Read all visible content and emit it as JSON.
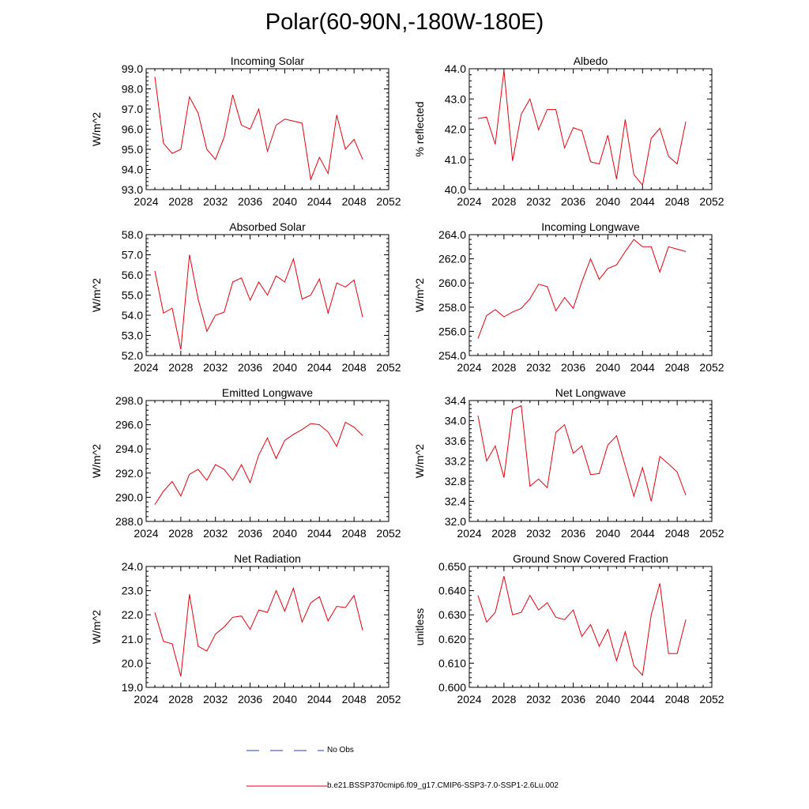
{
  "figure": {
    "title": "Polar(60-90N,-180W-180E)",
    "line_color": "#e8000b",
    "legend": [
      {
        "label": "No Obs",
        "style": "dashed",
        "color": "#2a3bbf"
      },
      {
        "label": "b.e21.BSSP370cmip6.f09_g17.CMIP6-SSP3-7.0-SSP1-2.6Lu.002",
        "style": "solid",
        "color": "#e8000b"
      }
    ]
  },
  "chart_data": [
    {
      "type": "line",
      "title": "Incoming Solar",
      "xlabel": "",
      "ylabel": "W/m^2",
      "xlim": [
        2024,
        2052
      ],
      "ylim": [
        93.0,
        99.0
      ],
      "xticks": [
        "2024",
        "2028",
        "2032",
        "2036",
        "2040",
        "2044",
        "2048",
        "2052"
      ],
      "yticks": [
        "93.0",
        "94.0",
        "95.0",
        "96.0",
        "97.0",
        "98.0",
        "99.0"
      ],
      "x": [
        2025,
        2026,
        2027,
        2028,
        2029,
        2030,
        2031,
        2032,
        2033,
        2034,
        2035,
        2036,
        2037,
        2038,
        2039,
        2040,
        2041,
        2042,
        2043,
        2044,
        2045,
        2046,
        2047,
        2048,
        2049
      ],
      "y": [
        98.6,
        95.3,
        94.8,
        95.0,
        97.6,
        96.8,
        95.0,
        94.5,
        95.6,
        97.7,
        96.2,
        96.0,
        97.0,
        94.9,
        96.2,
        96.5,
        96.4,
        96.3,
        93.5,
        94.6,
        93.8,
        96.7,
        95.0,
        95.5,
        94.5
      ]
    },
    {
      "type": "line",
      "title": "Albedo",
      "xlabel": "",
      "ylabel": "% reflected",
      "xlim": [
        2024,
        2052
      ],
      "ylim": [
        40.0,
        44.0
      ],
      "xticks": [
        "2024",
        "2028",
        "2032",
        "2036",
        "2040",
        "2044",
        "2048",
        "2052"
      ],
      "yticks": [
        "40.0",
        "41.0",
        "42.0",
        "43.0",
        "44.0"
      ],
      "x": [
        2025,
        2026,
        2027,
        2028,
        2029,
        2030,
        2031,
        2032,
        2033,
        2034,
        2035,
        2036,
        2037,
        2038,
        2039,
        2040,
        2041,
        2042,
        2043,
        2044,
        2045,
        2046,
        2047,
        2048,
        2049
      ],
      "y": [
        42.35,
        42.4,
        41.5,
        43.95,
        40.95,
        42.5,
        43.0,
        41.98,
        42.65,
        42.65,
        41.38,
        42.05,
        41.95,
        40.92,
        40.85,
        41.8,
        40.35,
        42.32,
        40.5,
        40.15,
        41.7,
        42.03,
        41.1,
        40.85,
        42.25
      ]
    },
    {
      "type": "line",
      "title": "Absorbed Solar",
      "xlabel": "",
      "ylabel": "W/m^2",
      "xlim": [
        2024,
        2052
      ],
      "ylim": [
        52.0,
        58.0
      ],
      "xticks": [
        "2024",
        "2028",
        "2032",
        "2036",
        "2040",
        "2044",
        "2048",
        "2052"
      ],
      "yticks": [
        "52.0",
        "53.0",
        "54.0",
        "55.0",
        "56.0",
        "57.0",
        "58.0"
      ],
      "x": [
        2025,
        2026,
        2027,
        2028,
        2029,
        2030,
        2031,
        2032,
        2033,
        2034,
        2035,
        2036,
        2037,
        2038,
        2039,
        2040,
        2041,
        2042,
        2043,
        2044,
        2045,
        2046,
        2047,
        2048,
        2049
      ],
      "y": [
        56.2,
        54.1,
        54.35,
        52.3,
        57.0,
        54.8,
        53.2,
        54.0,
        54.15,
        55.65,
        55.85,
        54.75,
        55.65,
        55.0,
        55.95,
        55.65,
        56.8,
        54.8,
        55.0,
        55.8,
        54.1,
        55.6,
        55.4,
        55.75,
        53.9
      ]
    },
    {
      "type": "line",
      "title": "Incoming Longwave",
      "xlabel": "",
      "ylabel": "W/m^2",
      "xlim": [
        2024,
        2052
      ],
      "ylim": [
        254.0,
        264.0
      ],
      "xticks": [
        "2024",
        "2028",
        "2032",
        "2036",
        "2040",
        "2044",
        "2048",
        "2052"
      ],
      "yticks": [
        "254.0",
        "256.0",
        "258.0",
        "260.0",
        "262.0",
        "264.0"
      ],
      "x": [
        2025,
        2026,
        2027,
        2028,
        2029,
        2030,
        2031,
        2032,
        2033,
        2034,
        2035,
        2036,
        2037,
        2038,
        2039,
        2040,
        2041,
        2042,
        2043,
        2044,
        2045,
        2046,
        2047,
        2048,
        2049
      ],
      "y": [
        255.4,
        257.3,
        257.8,
        257.2,
        257.6,
        257.9,
        258.7,
        259.9,
        259.7,
        257.7,
        258.8,
        257.9,
        260.1,
        262.0,
        260.3,
        261.2,
        261.5,
        262.6,
        263.6,
        263.0,
        263.0,
        260.9,
        263.0,
        262.8,
        262.6
      ]
    },
    {
      "type": "line",
      "title": "Emitted Longwave",
      "xlabel": "",
      "ylabel": "W/m^2",
      "xlim": [
        2024,
        2052
      ],
      "ylim": [
        288.0,
        298.0
      ],
      "xticks": [
        "2024",
        "2028",
        "2032",
        "2036",
        "2040",
        "2044",
        "2048",
        "2052"
      ],
      "yticks": [
        "288.0",
        "290.0",
        "292.0",
        "294.0",
        "296.0",
        "298.0"
      ],
      "x": [
        2025,
        2026,
        2027,
        2028,
        2029,
        2030,
        2031,
        2032,
        2033,
        2034,
        2035,
        2036,
        2037,
        2038,
        2039,
        2040,
        2041,
        2042,
        2043,
        2044,
        2045,
        2046,
        2047,
        2048,
        2049
      ],
      "y": [
        289.4,
        290.5,
        291.3,
        290.1,
        291.9,
        292.3,
        291.4,
        292.7,
        292.3,
        291.4,
        292.7,
        291.2,
        293.5,
        294.9,
        293.2,
        294.7,
        295.2,
        295.6,
        296.1,
        296.0,
        295.4,
        294.2,
        296.2,
        295.8,
        295.1
      ]
    },
    {
      "type": "line",
      "title": "Net Longwave",
      "xlabel": "",
      "ylabel": "W/m^2",
      "xlim": [
        2024,
        2052
      ],
      "ylim": [
        32.0,
        34.4
      ],
      "xticks": [
        "2024",
        "2028",
        "2032",
        "2036",
        "2040",
        "2044",
        "2048",
        "2052"
      ],
      "yticks": [
        "32.0",
        "32.4",
        "32.8",
        "33.2",
        "33.6",
        "34.0",
        "34.4"
      ],
      "x": [
        2025,
        2026,
        2027,
        2028,
        2029,
        2030,
        2031,
        2032,
        2033,
        2034,
        2035,
        2036,
        2037,
        2038,
        2039,
        2040,
        2041,
        2042,
        2043,
        2044,
        2045,
        2046,
        2047,
        2048,
        2049
      ],
      "y": [
        34.1,
        33.2,
        33.5,
        32.87,
        34.22,
        34.3,
        32.7,
        32.84,
        32.67,
        33.77,
        33.92,
        33.35,
        33.5,
        32.93,
        32.95,
        33.52,
        33.7,
        33.1,
        32.5,
        33.07,
        32.4,
        33.29,
        33.14,
        32.98,
        32.52
      ]
    },
    {
      "type": "line",
      "title": "Net Radiation",
      "xlabel": "",
      "ylabel": "W/m^2",
      "xlim": [
        2024,
        2052
      ],
      "ylim": [
        19.0,
        24.0
      ],
      "xticks": [
        "2024",
        "2028",
        "2032",
        "2036",
        "2040",
        "2044",
        "2048",
        "2052"
      ],
      "yticks": [
        "19.0",
        "20.0",
        "21.0",
        "22.0",
        "23.0",
        "24.0"
      ],
      "x": [
        2025,
        2026,
        2027,
        2028,
        2029,
        2030,
        2031,
        2032,
        2033,
        2034,
        2035,
        2036,
        2037,
        2038,
        2039,
        2040,
        2041,
        2042,
        2043,
        2044,
        2045,
        2046,
        2047,
        2048,
        2049
      ],
      "y": [
        22.1,
        20.9,
        20.8,
        19.45,
        22.85,
        20.7,
        20.5,
        21.2,
        21.5,
        21.9,
        21.95,
        21.4,
        22.2,
        22.1,
        23.0,
        22.15,
        23.1,
        21.7,
        22.5,
        22.75,
        21.75,
        22.35,
        22.3,
        22.8,
        21.35
      ]
    },
    {
      "type": "line",
      "title": "Ground Snow Covered Fraction",
      "xlabel": "",
      "ylabel": "unitless",
      "xlim": [
        2024,
        2052
      ],
      "ylim": [
        0.6,
        0.65
      ],
      "xticks": [
        "2024",
        "2028",
        "2032",
        "2036",
        "2040",
        "2044",
        "2048",
        "2052"
      ],
      "yticks": [
        "0.600",
        "0.610",
        "0.620",
        "0.630",
        "0.640",
        "0.650"
      ],
      "x": [
        2025,
        2026,
        2027,
        2028,
        2029,
        2030,
        2031,
        2032,
        2033,
        2034,
        2035,
        2036,
        2037,
        2038,
        2039,
        2040,
        2041,
        2042,
        2043,
        2044,
        2045,
        2046,
        2047,
        2048,
        2049
      ],
      "y": [
        0.638,
        0.627,
        0.631,
        0.646,
        0.63,
        0.631,
        0.638,
        0.632,
        0.635,
        0.629,
        0.628,
        0.632,
        0.621,
        0.626,
        0.617,
        0.624,
        0.611,
        0.623,
        0.609,
        0.605,
        0.63,
        0.643,
        0.614,
        0.614,
        0.628
      ]
    }
  ]
}
